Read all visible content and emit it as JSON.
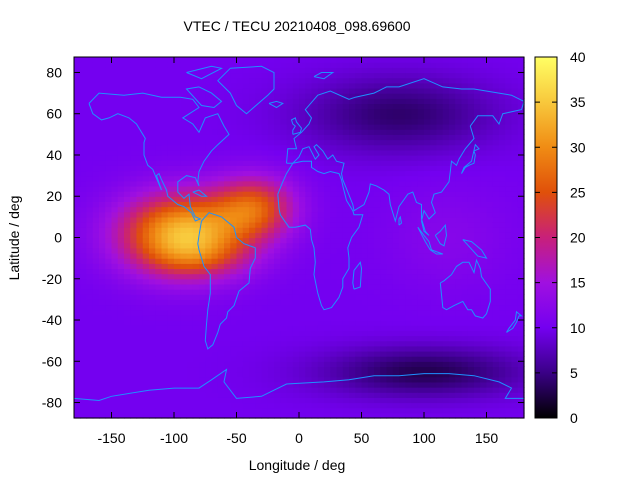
{
  "chart_data": {
    "type": "heatmap",
    "title": "VTEC / TECU 20210408_098.69600",
    "xlabel": "Longitude / deg",
    "ylabel": "Latitude / deg",
    "xlim": [
      -180,
      180
    ],
    "ylim": [
      -87.5,
      87.5
    ],
    "x_ticks": [
      -150,
      -100,
      -50,
      0,
      50,
      100,
      150
    ],
    "y_ticks": [
      80,
      60,
      40,
      20,
      0,
      -20,
      -40,
      -60,
      -80
    ],
    "colorbar": {
      "range": [
        0,
        40
      ],
      "ticks": [
        0,
        5,
        10,
        15,
        20,
        25,
        30,
        35,
        40
      ],
      "colormap": [
        "#000000",
        "#3a0086",
        "#7400f0",
        "#a010e0",
        "#c8207a",
        "#e0500a",
        "#f08c14",
        "#f8c83c",
        "#ffff64"
      ]
    },
    "grid": {
      "lon_step": 5,
      "lat_step": 2.5
    },
    "field": {
      "background": 10,
      "features": [
        {
          "lon": -92,
          "lat": 2,
          "amp": 24,
          "sx": 50,
          "sy": 19
        },
        {
          "lon": -35,
          "lat": 15,
          "amp": 14,
          "sx": 32,
          "sy": 15
        },
        {
          "lon": -80,
          "lat": -10,
          "amp": 4,
          "sx": 40,
          "sy": 10
        },
        {
          "lon": 80,
          "lat": 60,
          "amp": -6,
          "sx": 75,
          "sy": 18
        },
        {
          "lon": 100,
          "lat": -65,
          "amp": -7,
          "sx": 80,
          "sy": 12
        },
        {
          "lon": 120,
          "lat": 0,
          "amp": 2,
          "sx": 50,
          "sy": 25
        }
      ]
    },
    "coastline_color": "#1e90ff"
  }
}
